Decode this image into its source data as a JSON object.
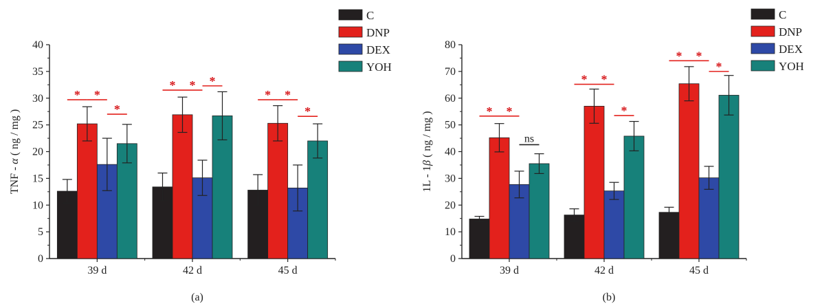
{
  "colors": {
    "C": "#231f20",
    "DNP": "#e3211c",
    "DEX": "#2e49a6",
    "YOH": "#17817a",
    "sig": "#e3211c",
    "ns": "#222222"
  },
  "chart_data": [
    {
      "type": "bar",
      "panel_label": "(a)",
      "ylabel": "TNF - α ( ng / mg )",
      "ylabel_parts": [
        "TNF - ",
        "α",
        " ( ng / mg )"
      ],
      "ylim": [
        0,
        40
      ],
      "yticks": [
        0,
        5,
        10,
        15,
        20,
        25,
        30,
        35,
        40
      ],
      "categories": [
        "39 d",
        "42 d",
        "45 d"
      ],
      "series": [
        {
          "name": "C",
          "values": [
            12.6,
            13.4,
            12.8
          ],
          "errors": [
            2.2,
            2.6,
            2.9
          ]
        },
        {
          "name": "DNP",
          "values": [
            25.2,
            26.9,
            25.3
          ],
          "errors": [
            3.2,
            3.3,
            3.3
          ]
        },
        {
          "name": "DEX",
          "values": [
            17.6,
            15.1,
            13.2
          ],
          "errors": [
            4.9,
            3.3,
            4.3
          ]
        },
        {
          "name": "YOH",
          "values": [
            21.5,
            26.7,
            22.0
          ],
          "errors": [
            3.6,
            4.5,
            3.2
          ]
        }
      ],
      "legend": {
        "placement": "top-right",
        "entries": [
          "C",
          "DNP",
          "DEX",
          "YOH"
        ]
      },
      "significance": [
        {
          "cat": 0,
          "from": 0,
          "to": 1,
          "y": 29.7,
          "label": "*"
        },
        {
          "cat": 0,
          "from": 1,
          "to": 2,
          "y": 29.7,
          "label": "*"
        },
        {
          "cat": 0,
          "from": 2,
          "to": 3,
          "y": 27.0,
          "label": "*"
        },
        {
          "cat": 1,
          "from": 0,
          "to": 1,
          "y": 31.5,
          "label": "*"
        },
        {
          "cat": 1,
          "from": 1,
          "to": 2,
          "y": 31.5,
          "label": "*"
        },
        {
          "cat": 1,
          "from": 2,
          "to": 3,
          "y": 32.3,
          "label": "*"
        },
        {
          "cat": 2,
          "from": 0,
          "to": 1,
          "y": 29.7,
          "label": "*"
        },
        {
          "cat": 2,
          "from": 1,
          "to": 2,
          "y": 29.7,
          "label": "*"
        },
        {
          "cat": 2,
          "from": 2,
          "to": 3,
          "y": 26.6,
          "label": "*"
        }
      ]
    },
    {
      "type": "bar",
      "panel_label": "(b)",
      "ylabel": "1L - 1β ( ng / mg )",
      "ylabel_parts": [
        "1L - 1",
        "β",
        " ( ng / mg )"
      ],
      "ylim": [
        0,
        80
      ],
      "yticks": [
        0,
        10,
        20,
        30,
        40,
        50,
        60,
        70,
        80
      ],
      "categories": [
        "39 d",
        "42 d",
        "45 d"
      ],
      "series": [
        {
          "name": "C",
          "values": [
            14.8,
            16.3,
            17.3
          ],
          "errors": [
            1.0,
            2.3,
            1.9
          ]
        },
        {
          "name": "DNP",
          "values": [
            45.2,
            57.0,
            65.4
          ],
          "errors": [
            5.3,
            6.4,
            6.4
          ]
        },
        {
          "name": "DEX",
          "values": [
            27.7,
            25.3,
            30.2
          ],
          "errors": [
            5.0,
            3.2,
            4.3
          ]
        },
        {
          "name": "YOH",
          "values": [
            35.5,
            45.8,
            61.1
          ],
          "errors": [
            3.7,
            5.5,
            7.4
          ]
        }
      ],
      "legend": {
        "placement": "top-right",
        "entries": [
          "C",
          "DNP",
          "DEX",
          "YOH"
        ]
      },
      "significance": [
        {
          "cat": 0,
          "from": 0,
          "to": 1,
          "y": 53.3,
          "label": "*"
        },
        {
          "cat": 0,
          "from": 1,
          "to": 2,
          "y": 53.3,
          "label": "*"
        },
        {
          "cat": 0,
          "from": 2,
          "to": 3,
          "y": 42.6,
          "label": "ns"
        },
        {
          "cat": 1,
          "from": 0,
          "to": 1,
          "y": 65.2,
          "label": "*"
        },
        {
          "cat": 1,
          "from": 1,
          "to": 2,
          "y": 65.2,
          "label": "*"
        },
        {
          "cat": 1,
          "from": 2,
          "to": 3,
          "y": 53.5,
          "label": "*"
        },
        {
          "cat": 2,
          "from": 0,
          "to": 1,
          "y": 74.0,
          "label": "*"
        },
        {
          "cat": 2,
          "from": 1,
          "to": 2,
          "y": 74.0,
          "label": "*"
        },
        {
          "cat": 2,
          "from": 2,
          "to": 3,
          "y": 70.0,
          "label": "*"
        }
      ]
    }
  ]
}
